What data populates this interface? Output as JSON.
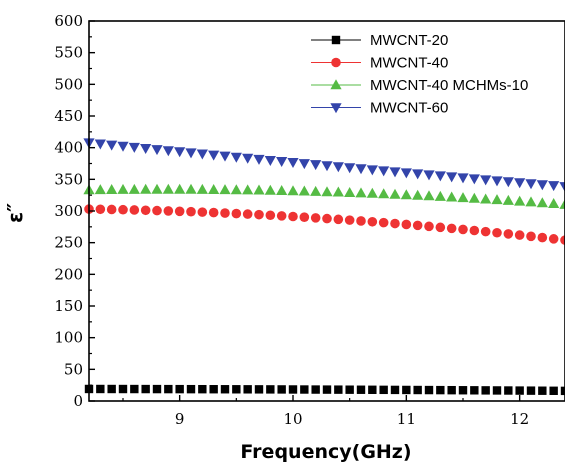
{
  "chart_data": {
    "type": "scatter",
    "title": "",
    "xlabel": "Frequency(GHz)",
    "ylabel": "ε″",
    "xlim": [
      8.2,
      12.4
    ],
    "ylim": [
      0,
      600
    ],
    "xticks": [
      9,
      10,
      11,
      12
    ],
    "yticks": [
      0,
      50,
      100,
      150,
      200,
      250,
      300,
      350,
      400,
      450,
      500,
      550,
      600
    ],
    "legend_position": "top-right",
    "grid": false,
    "series": [
      {
        "name": "MWCNT-20",
        "color": "#000000",
        "marker": "square",
        "x_start": 8.2,
        "x_end": 12.4,
        "count": 43,
        "y_start": 19,
        "y_mid": 18,
        "y_end": 16
      },
      {
        "name": "MWCNT-40",
        "color": "#ee3333",
        "marker": "circle",
        "x_start": 8.2,
        "x_end": 12.4,
        "count": 43,
        "y_start": 303,
        "y_mid": 288,
        "y_end": 254
      },
      {
        "name": "MWCNT-40 MCHMs-10",
        "color": "#55bb44",
        "marker": "triangle-up",
        "x_start": 8.2,
        "x_end": 12.4,
        "count": 43,
        "y_start": 333,
        "y_mid": 330,
        "y_end": 310
      },
      {
        "name": "MWCNT-60",
        "color": "#3344aa",
        "marker": "triangle-down",
        "x_start": 8.2,
        "x_end": 12.4,
        "count": 43,
        "y_start": 408,
        "y_mid": 372,
        "y_end": 339
      }
    ]
  }
}
